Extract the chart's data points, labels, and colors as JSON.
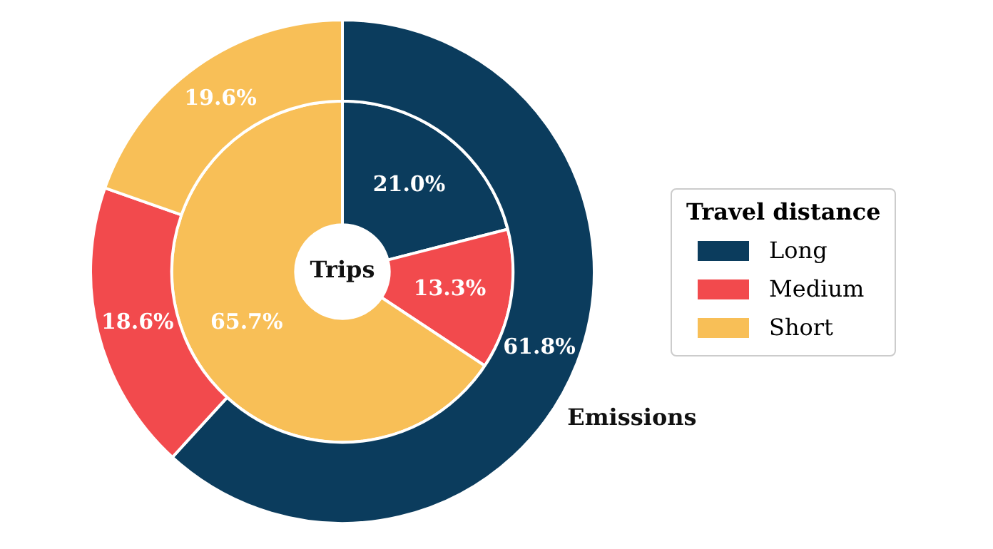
{
  "chart_data": {
    "type": "donut",
    "legend_title": "Travel distance",
    "legend": "right",
    "categories": [
      "Long",
      "Medium",
      "Short"
    ],
    "colors": [
      "#0b3c5d",
      "#f24a4d",
      "#f8bf57"
    ],
    "series": [
      {
        "name": "Emissions",
        "values": [
          61.8,
          18.6,
          19.6
        ],
        "value_labels": [
          "61.8%",
          "18.6%",
          "19.6%"
        ]
      },
      {
        "name": "Trips",
        "values": [
          21.0,
          13.3,
          65.7
        ],
        "value_labels": [
          "21.0%",
          "13.3%",
          "65.7%"
        ]
      }
    ]
  }
}
